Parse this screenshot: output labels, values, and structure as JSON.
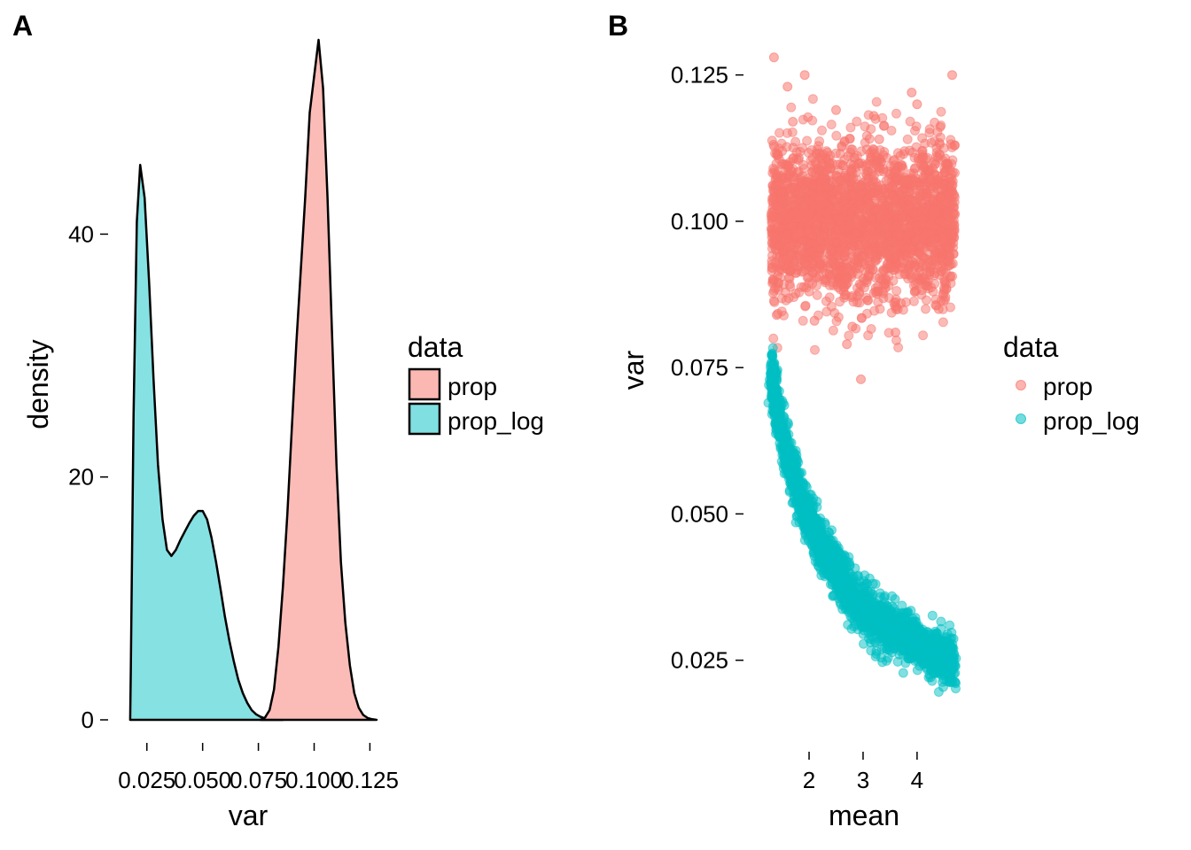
{
  "colors": {
    "prop": "#F8766D",
    "prop_log": "#00BFC4",
    "prop_fill": "#FBB8B3",
    "prop_log_fill": "#7FDFE1",
    "outline": "#000000"
  },
  "chart_data": [
    {
      "panel": "A",
      "type": "area",
      "subtype": "density",
      "xlabel": "var",
      "ylabel": "density",
      "xlim": [
        0.01,
        0.13
      ],
      "ylim": [
        0,
        56
      ],
      "x_ticks": [
        0.025,
        0.05,
        0.075,
        0.1,
        0.125
      ],
      "x_tick_labels": [
        "0.025",
        "0.050",
        "0.075",
        "0.100",
        "0.125"
      ],
      "y_ticks": [
        0,
        20,
        40
      ],
      "y_tick_labels": [
        "0",
        "20",
        "40"
      ],
      "grid": false,
      "legend": {
        "title": "data",
        "position": "right",
        "entries": [
          "prop",
          "prop_log"
        ]
      },
      "series": [
        {
          "name": "prop_log",
          "x": [
            0.0175,
            0.0178,
            0.019,
            0.0205,
            0.022,
            0.024,
            0.026,
            0.028,
            0.03,
            0.032,
            0.034,
            0.036,
            0.038,
            0.04,
            0.042,
            0.044,
            0.046,
            0.048,
            0.05,
            0.052,
            0.054,
            0.056,
            0.058,
            0.06,
            0.062,
            0.064,
            0.066,
            0.068,
            0.07,
            0.072,
            0.074,
            0.076,
            0.078,
            0.08,
            0.082,
            0.084,
            0.086
          ],
          "y": [
            0,
            4,
            25,
            41,
            45.7,
            43,
            36,
            28,
            21,
            16.5,
            14,
            13.5,
            14,
            14.8,
            15.5,
            16.2,
            16.8,
            17.2,
            17.2,
            16.5,
            15,
            13,
            10.8,
            8.5,
            6.5,
            4.8,
            3.3,
            2.2,
            1.4,
            0.8,
            0.45,
            0.25,
            0.12,
            0.06,
            0.03,
            0.01,
            0
          ]
        },
        {
          "name": "prop",
          "x": [
            0.076,
            0.078,
            0.08,
            0.082,
            0.084,
            0.086,
            0.088,
            0.09,
            0.092,
            0.094,
            0.096,
            0.098,
            0.1,
            0.102,
            0.104,
            0.106,
            0.108,
            0.11,
            0.112,
            0.114,
            0.116,
            0.118,
            0.12,
            0.122,
            0.124,
            0.126,
            0.128
          ],
          "y": [
            0,
            0.2,
            0.8,
            2.5,
            6,
            11,
            17,
            24,
            31,
            37,
            43,
            50,
            53,
            56,
            52,
            43,
            32,
            21,
            13,
            8,
            4.5,
            2.2,
            1,
            0.4,
            0.15,
            0.05,
            0
          ]
        }
      ]
    },
    {
      "panel": "B",
      "type": "scatter",
      "xlabel": "mean",
      "ylabel": "var",
      "xlim": [
        0.9,
        5.2
      ],
      "ylim": [
        0.013,
        0.131
      ],
      "x_ticks": [
        2,
        3,
        4
      ],
      "x_tick_labels": [
        "2",
        "3",
        "4"
      ],
      "y_ticks": [
        0.025,
        0.05,
        0.075,
        0.1,
        0.125
      ],
      "y_tick_labels": [
        "0.025",
        "0.050",
        "0.075",
        "0.100",
        "0.125"
      ],
      "grid": false,
      "legend": {
        "title": "data",
        "position": "right",
        "entries": [
          "prop",
          "prop_log"
        ]
      },
      "series": [
        {
          "name": "prop",
          "description_of_distribution": "dense band uniform over mean 1.3-4.7, var roughly 0.08-0.12",
          "x": [
            1.3,
            1.8,
            2.2,
            2.6,
            3.0,
            3.4,
            3.8,
            4.2,
            4.6,
            1.5,
            2.0,
            2.4,
            2.9,
            3.3,
            3.7,
            4.1,
            4.5,
            1.4,
            1.7,
            2.1,
            2.5,
            2.8,
            3.2,
            3.6,
            4.0,
            4.4,
            4.7,
            1.6,
            2.7,
            3.9,
            1.35,
            1.92,
            2.96,
            4.65
          ],
          "y": [
            0.101,
            0.098,
            0.104,
            0.095,
            0.102,
            0.099,
            0.107,
            0.093,
            0.1,
            0.112,
            0.088,
            0.109,
            0.091,
            0.114,
            0.086,
            0.111,
            0.097,
            0.084,
            0.117,
            0.083,
            0.119,
            0.082,
            0.118,
            0.081,
            0.12,
            0.085,
            0.113,
            0.123,
            0.079,
            0.122,
            0.128,
            0.125,
            0.073,
            0.125
          ]
        },
        {
          "name": "prop_log",
          "description_of_distribution": "decreasing curve: var ~0.075 at mean 1.3 down to ~0.024 at mean 4.7",
          "x": [
            1.3,
            1.4,
            1.5,
            1.6,
            1.7,
            1.8,
            1.9,
            2.0,
            2.2,
            2.4,
            2.6,
            2.8,
            3.0,
            3.2,
            3.4,
            3.6,
            3.8,
            4.0,
            4.2,
            4.4,
            4.6,
            4.7
          ],
          "y": [
            0.074,
            0.069,
            0.064,
            0.06,
            0.057,
            0.054,
            0.051,
            0.049,
            0.045,
            0.042,
            0.039,
            0.036,
            0.034,
            0.032,
            0.031,
            0.03,
            0.029,
            0.028,
            0.027,
            0.026,
            0.025,
            0.024
          ]
        }
      ]
    }
  ]
}
